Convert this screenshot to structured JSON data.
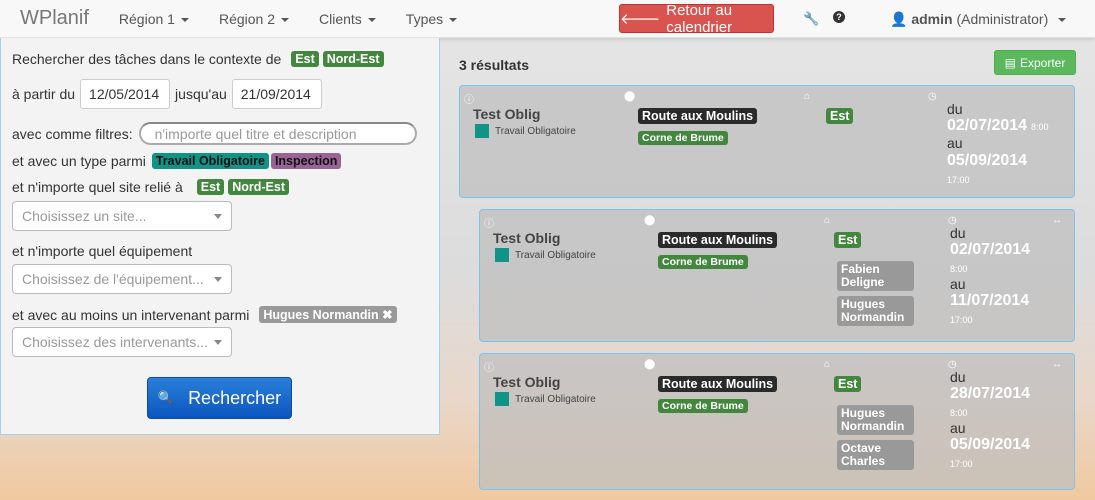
{
  "nav": {
    "brand": "WPlanif",
    "menus": [
      "Région 1",
      "Région 2",
      "Clients",
      "Types"
    ],
    "back": "Retour au calendrier",
    "user": "admin",
    "role": "(Administrator)"
  },
  "search": {
    "context_label": "Rechercher des tâches dans le contexte de",
    "context": [
      "Est",
      "Nord-Est"
    ],
    "from_label": "à partir du",
    "from": "12/05/2014",
    "to_label": "jusqu'au",
    "to": "21/09/2014",
    "filter_label": "avec comme filtres:",
    "filter_placeholder": "n'importe quel titre et description",
    "type_label": "et avec un type parmi",
    "types": [
      "Travail Obligatoire",
      "Inspection"
    ],
    "site_label": "et n'importe quel site relié à",
    "sites": [
      "Est",
      "Nord-Est"
    ],
    "site_placeholder": "Choisissez un site...",
    "equip_label": "et n'importe quel équipement",
    "equip_placeholder": "Choisissez de l'équipement...",
    "worker_label": "et avec au moins un intervenant parmi",
    "worker": "Hugues Normandin",
    "worker_placeholder": "Choisissez des intervenants...",
    "button": "Rechercher"
  },
  "results": {
    "count": "3 résultats",
    "export": "Exporter",
    "items": [
      {
        "title": "Test Oblig",
        "type": "Travail Obligatoire",
        "location": "Route aux Moulins",
        "site": "Corne de Brume",
        "region": "Est",
        "people": [],
        "du": "du",
        "start": "02/07/2014",
        "start_time": "8:00",
        "au": "au",
        "end": "05/09/2014",
        "end_time": "17:00"
      },
      {
        "title": "Test Oblig",
        "type": "Travail Obligatoire",
        "location": "Route aux Moulins",
        "site": "Corne de Brume",
        "region": "Est",
        "people": [
          "Fabien Deligne",
          "Hugues Normandin"
        ],
        "du": "du",
        "start": "02/07/2014",
        "start_time": "8:00",
        "au": "au",
        "end": "11/07/2014",
        "end_time": "17:00"
      },
      {
        "title": "Test Oblig",
        "type": "Travail Obligatoire",
        "location": "Route aux Moulins",
        "site": "Corne de Brume",
        "region": "Est",
        "people": [
          "Hugues Normandin",
          "Octave Charles"
        ],
        "du": "du",
        "start": "28/07/2014",
        "start_time": "8:00",
        "au": "au",
        "end": "05/09/2014",
        "end_time": "17:00"
      }
    ]
  }
}
